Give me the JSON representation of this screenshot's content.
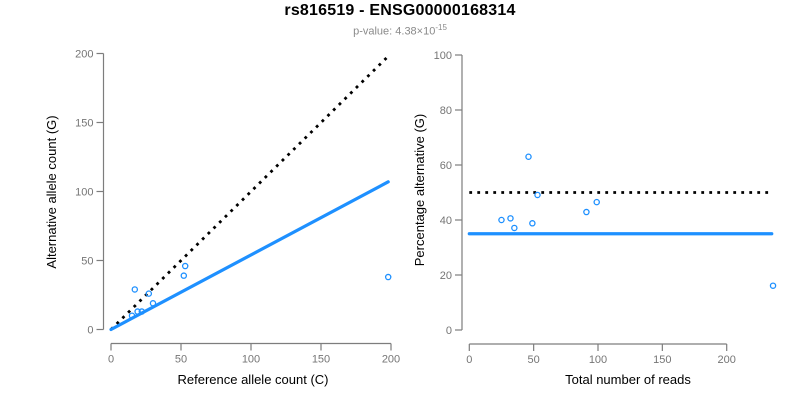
{
  "header": {
    "title": "rs816519 - ENSG00000168314",
    "subtitle_base": "p-value: 4.38×10",
    "subtitle_exponent": "-15"
  },
  "colors": {
    "accent_blue": "#1E90FF",
    "dotted_black": "#000000",
    "axis_gray": "#7d7d7d",
    "tick_label_gray": "#757575",
    "axis_title_black": "#000000",
    "subtitle_gray": "#8a8a8a"
  },
  "marker": {
    "shape": "open-circle",
    "color": "#1E90FF"
  },
  "chart_data": [
    {
      "id": "left",
      "type": "scatter",
      "xlabel": "Reference allele count (C)",
      "ylabel": "Alternative allele count (G)",
      "xlim": [
        0,
        200
      ],
      "ylim": [
        0,
        200
      ],
      "xticks": [
        0,
        50,
        100,
        150,
        200
      ],
      "yticks": [
        0,
        50,
        100,
        150,
        200
      ],
      "grid": false,
      "points": [
        [
          15,
          10
        ],
        [
          19,
          13
        ],
        [
          22,
          13
        ],
        [
          17,
          29
        ],
        [
          27,
          26
        ],
        [
          30,
          19
        ],
        [
          53,
          46
        ],
        [
          52,
          39
        ],
        [
          198,
          38
        ]
      ],
      "lines": [
        {
          "name": "identity-line",
          "style": "dotted",
          "color": "#000000",
          "x1": 0,
          "y1": 0,
          "x2": 197,
          "y2": 197
        },
        {
          "name": "regression-line",
          "style": "solid",
          "color": "#1E90FF",
          "x1": 0,
          "y1": 0,
          "x2": 198,
          "y2": 107
        }
      ]
    },
    {
      "id": "right",
      "type": "scatter",
      "xlabel": "Total number of reads",
      "ylabel": "Percentage alternative (G)",
      "xlim": [
        0,
        240
      ],
      "ylim": [
        0,
        100
      ],
      "xticks": [
        0,
        50,
        100,
        150,
        200
      ],
      "yticks": [
        0,
        20,
        40,
        60,
        80,
        100
      ],
      "grid": false,
      "points": [
        [
          25,
          40
        ],
        [
          32,
          40.6
        ],
        [
          35,
          37.1
        ],
        [
          46,
          63
        ],
        [
          53,
          49.1
        ],
        [
          49,
          38.8
        ],
        [
          99,
          46.5
        ],
        [
          91,
          42.9
        ],
        [
          236,
          16.1
        ]
      ],
      "lines": [
        {
          "name": "expected-ratio-line",
          "style": "dotted",
          "color": "#000000",
          "x1": 0,
          "y1": 50,
          "x2": 235,
          "y2": 50
        },
        {
          "name": "observed-ratio-line",
          "style": "solid",
          "color": "#1E90FF",
          "x1": 0,
          "y1": 35,
          "x2": 235,
          "y2": 35
        }
      ]
    }
  ]
}
